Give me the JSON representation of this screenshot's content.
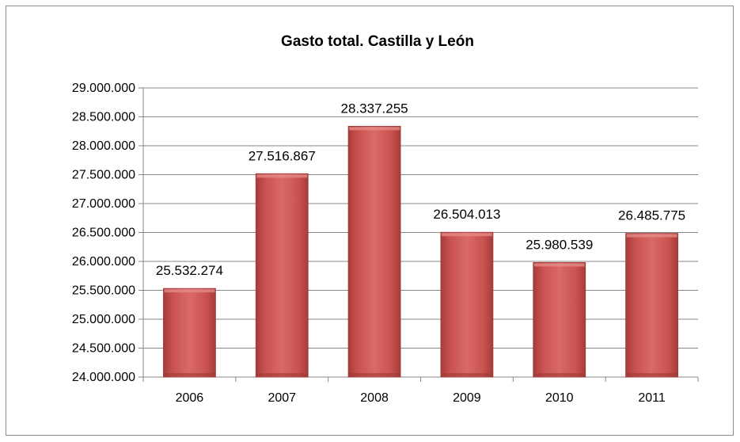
{
  "chart_data": {
    "type": "bar",
    "title": "Gasto total. Castilla y León",
    "xlabel": "",
    "ylabel": "",
    "categories": [
      "2006",
      "2007",
      "2008",
      "2009",
      "2010",
      "2011"
    ],
    "values": [
      25532274,
      27516867,
      28337255,
      26504013,
      25980539,
      26485775
    ],
    "value_labels": [
      "25.532.274",
      "27.516.867",
      "28.337.255",
      "26.504.013",
      "25.980.539",
      "26.485.775"
    ],
    "ylim": [
      24000000,
      29000000
    ],
    "yticks": [
      24000000,
      24500000,
      25000000,
      25500000,
      26000000,
      26500000,
      27000000,
      27500000,
      28000000,
      28500000,
      29000000
    ],
    "ytick_labels": [
      "24.000.000",
      "24.500.000",
      "25.000.000",
      "25.500.000",
      "26.000.000",
      "26.500.000",
      "27.000.000",
      "27.500.000",
      "28.000.000",
      "28.500.000",
      "29.000.000"
    ],
    "grid": true,
    "legend": "none",
    "bar_color": "#c0504d"
  }
}
